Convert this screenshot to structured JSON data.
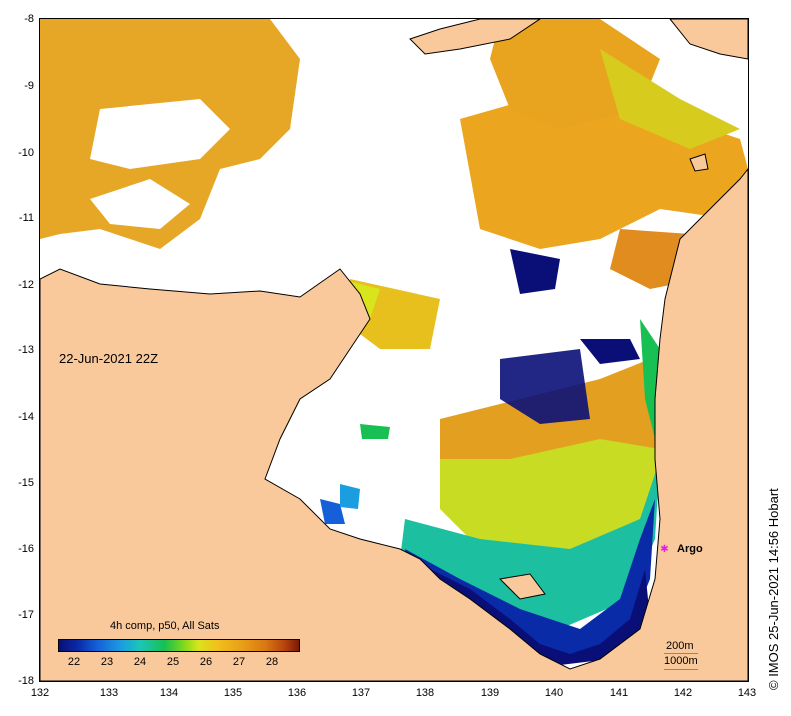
{
  "map": {
    "date_label": "22-Jun-2021 22Z",
    "credit": "© IMOS 25-Jun-2021 14:56 Hobart",
    "x_ticks": [
      "132",
      "133",
      "134",
      "135",
      "136",
      "137",
      "138",
      "139",
      "140",
      "141",
      "142",
      "143"
    ],
    "y_ticks": [
      "-8",
      "-9",
      "-10",
      "-11",
      "-12",
      "-13",
      "-14",
      "-15",
      "-16",
      "-17",
      "-18"
    ],
    "legend": {
      "title": "4h comp, p50, All Sats",
      "labels": [
        "22",
        "23",
        "24",
        "25",
        "26",
        "27",
        "28"
      ]
    },
    "argo": {
      "label": "Argo",
      "icon": "argo-float-icon",
      "color": "#e020e0"
    },
    "scale": {
      "depth_200": "200m",
      "depth_1000": "1000m"
    },
    "colors": {
      "land": "#f9c99b",
      "cloud": "#ffffff",
      "coast": "#000000"
    }
  }
}
